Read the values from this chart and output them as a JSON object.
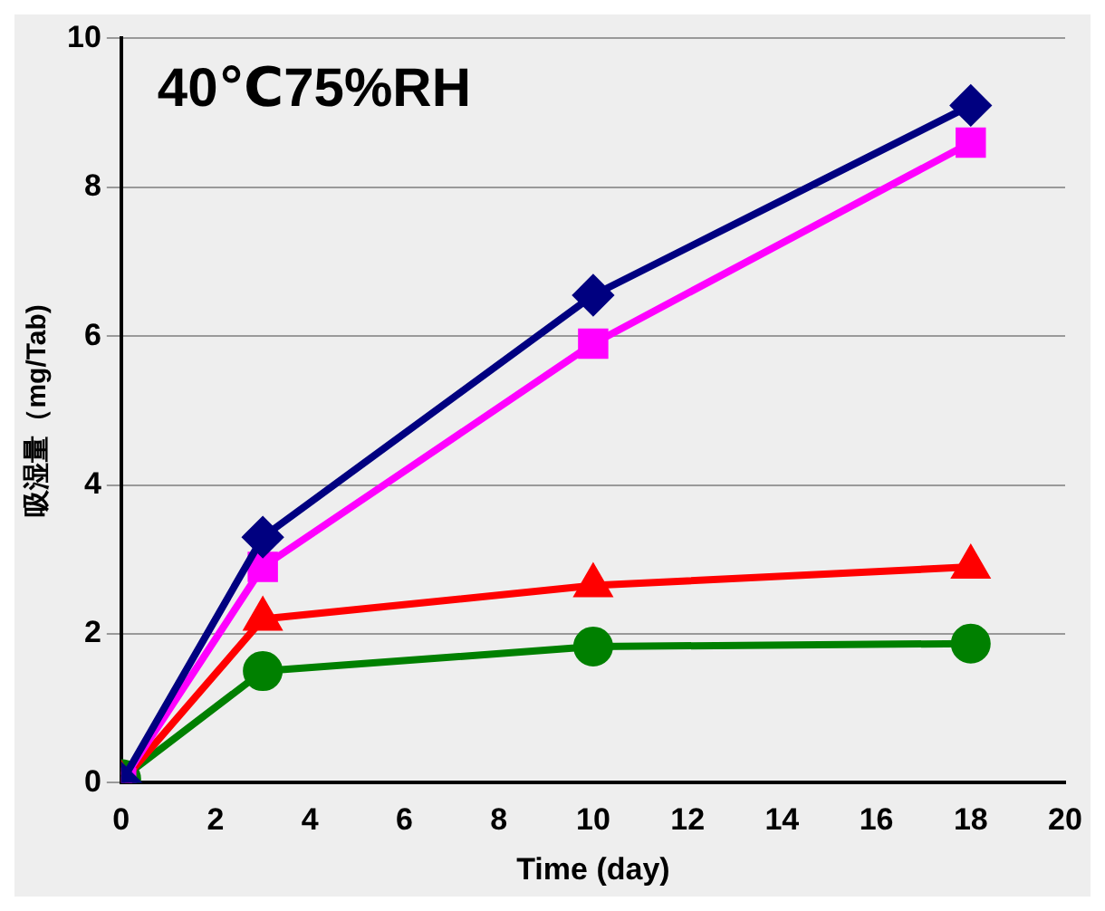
{
  "chart_data": {
    "type": "line",
    "xlabel": "Time (day)",
    "ylabel": "吸湿量（mg/Tab)",
    "annotations": [
      "40℃75%RH"
    ],
    "x": [
      0,
      3,
      10,
      18
    ],
    "xlim": [
      0,
      20
    ],
    "xticks": [
      0,
      2,
      4,
      6,
      8,
      10,
      12,
      14,
      16,
      18,
      20
    ],
    "ylim": [
      0,
      10
    ],
    "yticks": [
      0,
      2,
      4,
      6,
      8,
      10
    ],
    "grid": "y",
    "legend": false,
    "line_style": "solid",
    "series": [
      {
        "color": "#000080",
        "marker": "diamond",
        "values": [
          0,
          3.3,
          6.55,
          9.1
        ]
      },
      {
        "color": "#ff00ff",
        "marker": "square",
        "values": [
          0,
          2.9,
          5.9,
          8.6
        ]
      },
      {
        "color": "#ff0000",
        "marker": "triangle",
        "values": [
          0,
          2.2,
          2.65,
          2.9
        ]
      },
      {
        "color": "#008000",
        "marker": "circle",
        "values": [
          0.05,
          1.5,
          1.83,
          1.87
        ]
      }
    ]
  }
}
